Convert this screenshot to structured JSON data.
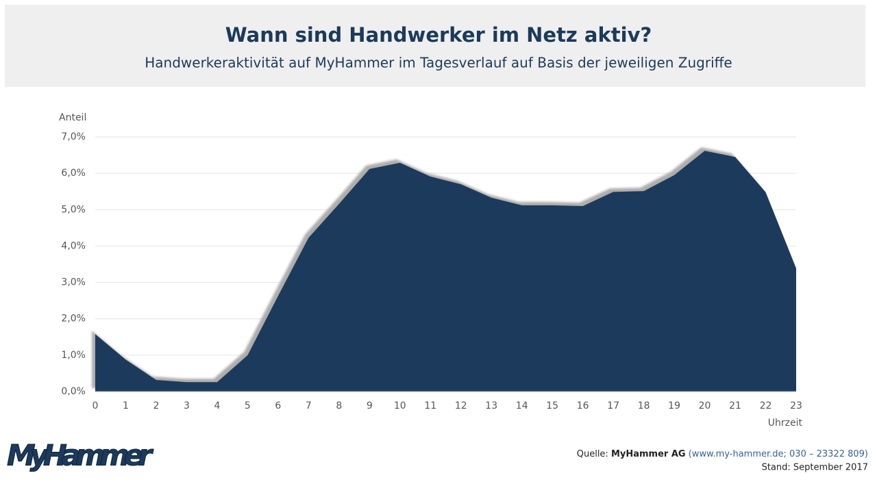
{
  "chart_data": {
    "type": "area",
    "title": "Wann sind Handwerker im Netz aktiv?",
    "subtitle": "Handwerkeraktivität auf MyHammer im Tagesverlauf auf Basis der jeweiligen Zugriffe",
    "y_label": "Anteil",
    "x_label": "Uhrzeit",
    "x": [
      0,
      1,
      2,
      3,
      4,
      5,
      6,
      7,
      8,
      9,
      10,
      11,
      12,
      13,
      14,
      15,
      16,
      17,
      18,
      19,
      20,
      21,
      22,
      23
    ],
    "values": [
      1.58,
      0.88,
      0.32,
      0.26,
      0.26,
      1.0,
      2.63,
      4.23,
      5.16,
      6.12,
      6.29,
      5.91,
      5.7,
      5.33,
      5.12,
      5.12,
      5.1,
      5.49,
      5.51,
      5.95,
      6.62,
      6.45,
      5.48,
      3.39
    ],
    "color": "#1b3a5c",
    "xlim": [
      0,
      23
    ],
    "xticks": [
      0,
      1,
      2,
      3,
      4,
      5,
      6,
      7,
      8,
      9,
      10,
      11,
      12,
      13,
      14,
      15,
      16,
      17,
      18,
      19,
      20,
      21,
      22,
      23
    ],
    "ylim": [
      0,
      7
    ],
    "yticks": [
      {
        "value": 0,
        "label": "0,0%"
      },
      {
        "value": 1,
        "label": "1,0%"
      },
      {
        "value": 2,
        "label": "2,0%"
      },
      {
        "value": 3,
        "label": "3,0%"
      },
      {
        "value": 4,
        "label": "4,0%"
      },
      {
        "value": 5,
        "label": "5,0%"
      },
      {
        "value": 6,
        "label": "6,0%"
      },
      {
        "value": 7,
        "label": "7,0%"
      }
    ],
    "grid": true
  },
  "logo": "MyHammer",
  "source": {
    "prefix": "Quelle:",
    "name": "MyHammer AG",
    "detail": "(www.my-hammer.de; 030 – 23322 809)",
    "date": "Stand: September 2017"
  }
}
